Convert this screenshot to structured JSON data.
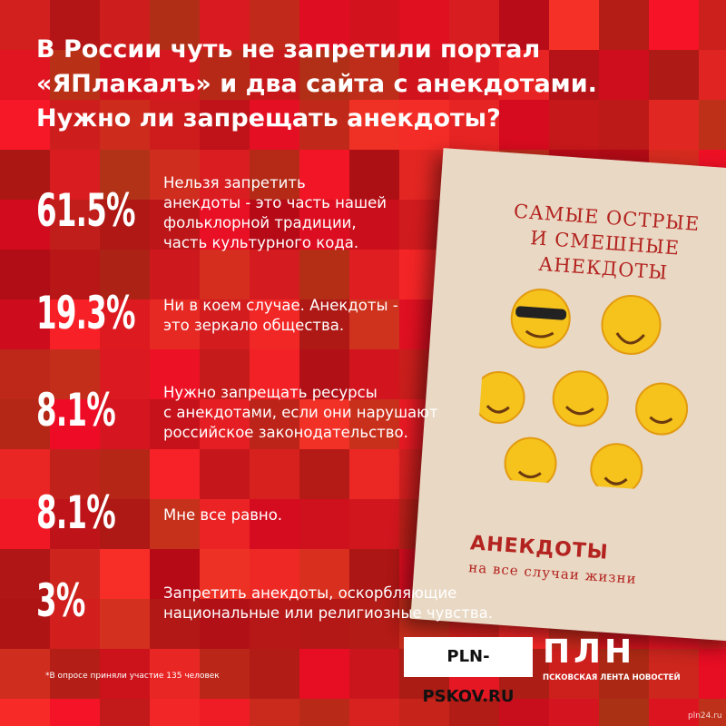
{
  "header": {
    "title_lines": [
      "В России чуть не запретили портал",
      "«ЯПлакалъ» и два сайта с анекдотами.",
      "Нужно ли запрещать анекдоты?"
    ]
  },
  "results": [
    {
      "percent": "61.5%",
      "answer_lines": [
        "Нельзя запретить",
        "анекдоты - это часть нашей",
        "фольклорной традиции,",
        "часть культурного кода."
      ]
    },
    {
      "percent": "19.3%",
      "answer_lines": [
        "Ни в коем случае. Анекдоты -",
        "это зеркало общества."
      ]
    },
    {
      "percent": "8.1%",
      "answer_lines": [
        "Нужно запрещать ресурсы",
        "с анекдотами, если они нарушают",
        "российское законодательство."
      ]
    },
    {
      "percent": "8.1%",
      "answer_lines": [
        "Мне все равно."
      ]
    },
    {
      "percent": "3%",
      "answer_lines": [
        "Запретить анекдоты, оскорбляющие",
        "национальные или религиозные чувства."
      ]
    }
  ],
  "book": {
    "title_lines": [
      "Самые острые",
      "и смешные анекдоты"
    ],
    "subtitle": "Анекдоты",
    "tagline": "на все случаи жизни"
  },
  "footer": {
    "note": "*В опросе приняли участие 135 человек",
    "site": "PLN-PSKOV.RU",
    "logo": "ПЛН",
    "logo_caption": "ПСКОВСКАЯ ЛЕНТА НОВОСТЕЙ",
    "watermark": "pln24.ru"
  }
}
